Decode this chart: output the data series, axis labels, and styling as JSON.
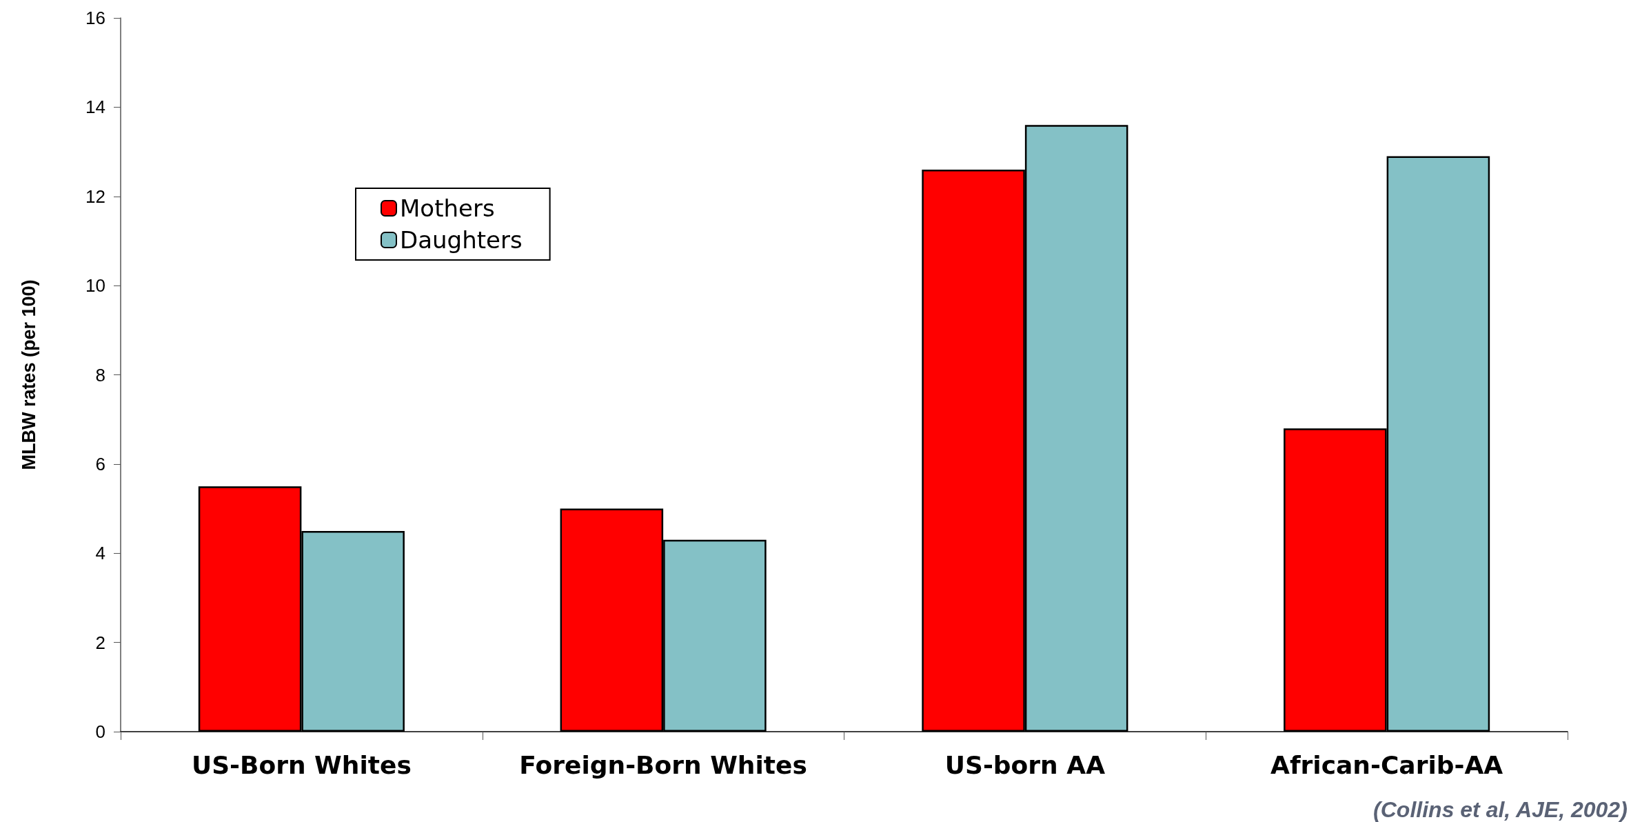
{
  "chart_data": {
    "type": "bar",
    "ylabel": "MLBW rates (per 100)",
    "categories": [
      "US-Born Whites",
      "Foreign-Born Whites",
      "US-born AA",
      "African-Carib-AA"
    ],
    "series": [
      {
        "name": "Mothers",
        "color": "#ff0000",
        "values": [
          5.5,
          5.0,
          12.6,
          6.8
        ]
      },
      {
        "name": "Daughters",
        "color": "#84c1c6",
        "values": [
          4.5,
          4.3,
          13.6,
          12.9
        ]
      }
    ],
    "ylim": [
      0,
      16
    ],
    "yticks": [
      0,
      2,
      4,
      6,
      8,
      10,
      12,
      14,
      16
    ],
    "grid": false,
    "legend": "top left",
    "annotations": [
      "(Collins et al, AJE, 2002)"
    ]
  }
}
